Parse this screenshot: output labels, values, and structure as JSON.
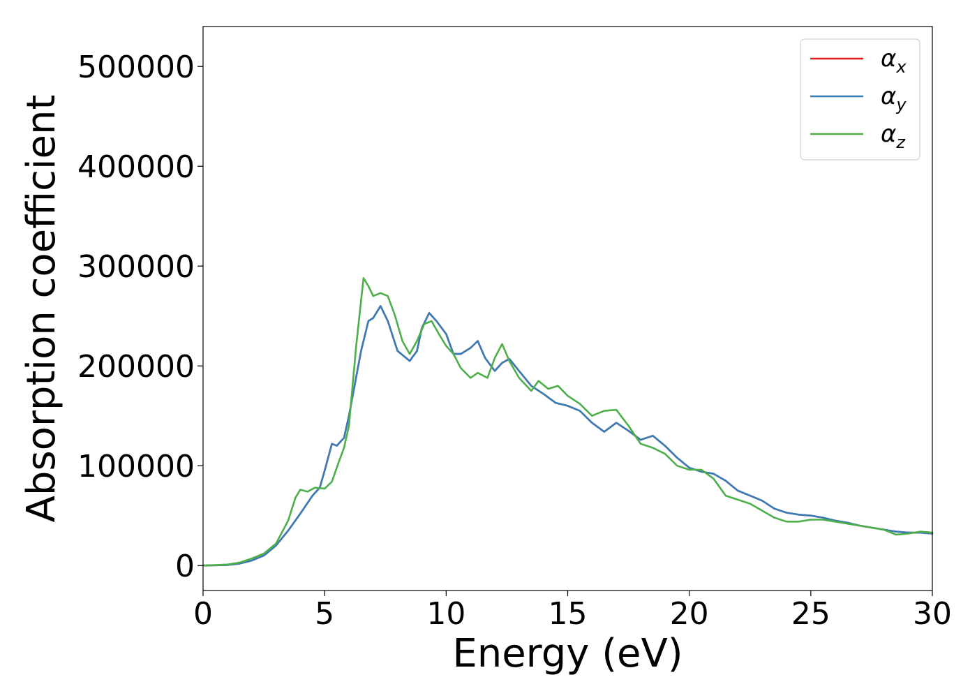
{
  "chart_data": {
    "type": "line",
    "title": "",
    "xlabel": "Energy (eV)",
    "ylabel": "Absorption coefficient",
    "xlim": [
      0,
      30
    ],
    "ylim": [
      -25000,
      540000
    ],
    "xticks": [
      0,
      5,
      10,
      15,
      20,
      25,
      30
    ],
    "yticks": [
      0,
      100000,
      200000,
      300000,
      400000,
      500000
    ],
    "xtick_labels": [
      "0",
      "5",
      "10",
      "15",
      "20",
      "25",
      "30"
    ],
    "ytick_labels": [
      "0",
      "100000",
      "200000",
      "300000",
      "400000",
      "500000"
    ],
    "grid": false,
    "legend_position": "top-right",
    "series": [
      {
        "name": "αx",
        "name_base": "α",
        "name_sub": "x",
        "color": "#e41a1c",
        "x": [
          0,
          1,
          1.5,
          2,
          2.5,
          3,
          3.5,
          4,
          4.5,
          4.8,
          5,
          5.3,
          5.5,
          5.8,
          6,
          6.5,
          6.8,
          7,
          7.3,
          7.6,
          8,
          8.5,
          8.8,
          9,
          9.3,
          9.6,
          10,
          10.3,
          10.6,
          11,
          11.3,
          11.6,
          12,
          12.3,
          12.6,
          13,
          13.5,
          14,
          14.5,
          15,
          15.5,
          16,
          16.5,
          17,
          17.5,
          18,
          18.5,
          19,
          19.5,
          20,
          20.5,
          21,
          21.5,
          22,
          22.5,
          23,
          23.5,
          24,
          24.5,
          25,
          25.5,
          26,
          26.5,
          27,
          27.5,
          28,
          28.5,
          29,
          29.5,
          30
        ],
        "y": [
          0,
          500,
          2000,
          5000,
          10000,
          20000,
          35000,
          52000,
          70000,
          78000,
          95000,
          122000,
          120000,
          128000,
          150000,
          215000,
          245000,
          248000,
          260000,
          245000,
          215000,
          205000,
          215000,
          238000,
          253000,
          245000,
          232000,
          212000,
          212000,
          218000,
          225000,
          208000,
          195000,
          203000,
          207000,
          195000,
          180000,
          172000,
          163000,
          160000,
          155000,
          143000,
          134000,
          143000,
          135000,
          126000,
          130000,
          120000,
          108000,
          98000,
          94000,
          92000,
          85000,
          75000,
          70000,
          65000,
          57000,
          53000,
          51000,
          50000,
          48000,
          45000,
          43000,
          40000,
          38000,
          36000,
          34000,
          33000,
          33000,
          32000
        ]
      },
      {
        "name": "αy",
        "name_base": "α",
        "name_sub": "y",
        "color": "#377eb8",
        "x": [
          0,
          1,
          1.5,
          2,
          2.5,
          3,
          3.5,
          4,
          4.5,
          4.8,
          5,
          5.3,
          5.5,
          5.8,
          6,
          6.5,
          6.8,
          7,
          7.3,
          7.6,
          8,
          8.5,
          8.8,
          9,
          9.3,
          9.6,
          10,
          10.3,
          10.6,
          11,
          11.3,
          11.6,
          12,
          12.3,
          12.6,
          13,
          13.5,
          14,
          14.5,
          15,
          15.5,
          16,
          16.5,
          17,
          17.5,
          18,
          18.5,
          19,
          19.5,
          20,
          20.5,
          21,
          21.5,
          22,
          22.5,
          23,
          23.5,
          24,
          24.5,
          25,
          25.5,
          26,
          26.5,
          27,
          27.5,
          28,
          28.5,
          29,
          29.5,
          30
        ],
        "y": [
          0,
          500,
          2000,
          5000,
          10000,
          20000,
          35000,
          52000,
          70000,
          78000,
          95000,
          122000,
          120000,
          128000,
          150000,
          215000,
          245000,
          248000,
          260000,
          245000,
          215000,
          205000,
          215000,
          238000,
          253000,
          245000,
          232000,
          212000,
          212000,
          218000,
          225000,
          208000,
          195000,
          203000,
          207000,
          195000,
          180000,
          172000,
          163000,
          160000,
          155000,
          143000,
          134000,
          143000,
          135000,
          126000,
          130000,
          120000,
          108000,
          98000,
          94000,
          92000,
          85000,
          75000,
          70000,
          65000,
          57000,
          53000,
          51000,
          50000,
          48000,
          45000,
          43000,
          40000,
          38000,
          36000,
          34000,
          33000,
          33000,
          32000
        ]
      },
      {
        "name": "αz",
        "name_base": "α",
        "name_sub": "z",
        "color": "#4daf4a",
        "x": [
          0,
          1,
          1.5,
          2,
          2.5,
          3,
          3.5,
          3.8,
          4,
          4.3,
          4.6,
          5,
          5.3,
          5.6,
          5.8,
          6,
          6.3,
          6.6,
          6.8,
          7,
          7.3,
          7.6,
          7.9,
          8.2,
          8.5,
          8.8,
          9.1,
          9.4,
          9.7,
          10,
          10.3,
          10.6,
          11,
          11.3,
          11.7,
          12,
          12.3,
          12.6,
          13,
          13.5,
          13.8,
          14.2,
          14.6,
          15,
          15.5,
          16,
          16.5,
          17,
          17.5,
          18,
          18.5,
          19,
          19.5,
          20,
          20.5,
          21,
          21.5,
          22,
          22.5,
          23,
          23.5,
          24,
          24.5,
          25,
          25.5,
          26,
          26.5,
          27,
          27.5,
          28,
          28.5,
          29,
          29.5,
          30
        ],
        "y": [
          0,
          1000,
          3000,
          7000,
          12000,
          22000,
          45000,
          68000,
          76000,
          74000,
          78000,
          77000,
          84000,
          105000,
          118000,
          140000,
          220000,
          288000,
          280000,
          270000,
          273000,
          270000,
          250000,
          225000,
          212000,
          225000,
          242000,
          245000,
          232000,
          220000,
          212000,
          198000,
          188000,
          193000,
          188000,
          208000,
          222000,
          205000,
          188000,
          175000,
          185000,
          177000,
          180000,
          170000,
          162000,
          150000,
          155000,
          156000,
          140000,
          122000,
          118000,
          112000,
          100000,
          96000,
          96000,
          87000,
          70000,
          66000,
          62000,
          55000,
          48000,
          44000,
          44000,
          46000,
          46000,
          44000,
          42000,
          40000,
          38000,
          36000,
          31000,
          32000,
          34000,
          33000
        ]
      }
    ]
  }
}
